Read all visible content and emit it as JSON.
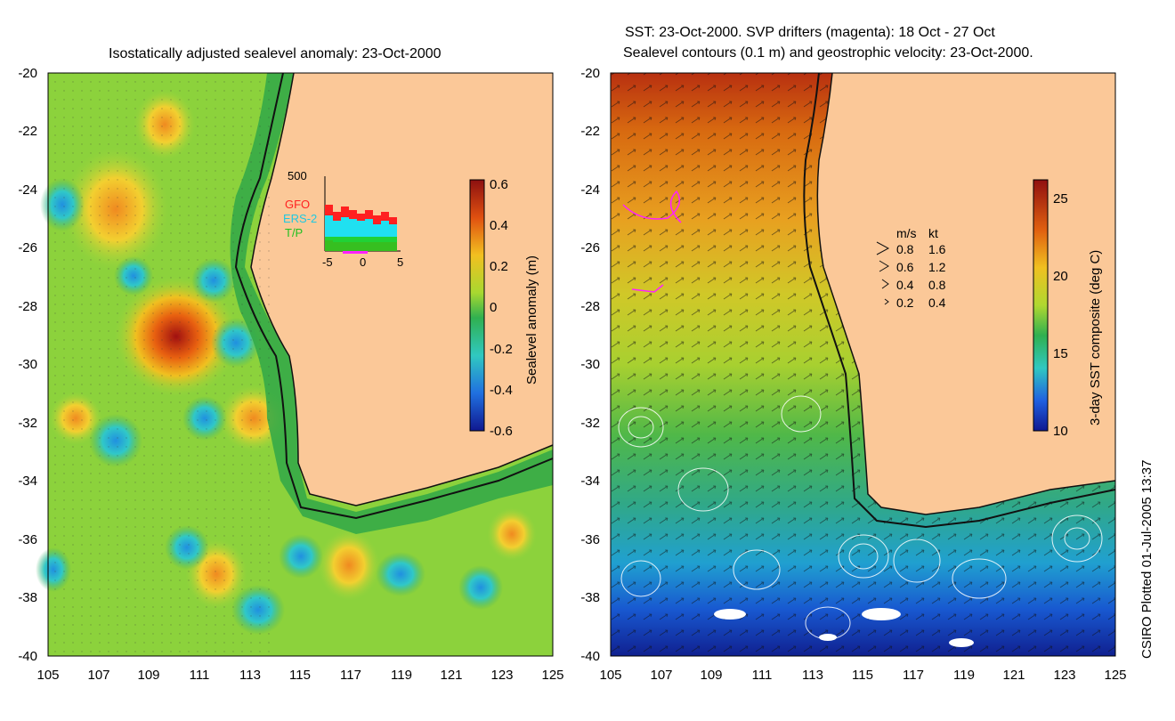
{
  "left_map": {
    "title": "Isostatically adjusted sealevel anomaly: 23-Oct-2000",
    "colorbar_label": "Sealevel anomaly (m)",
    "colorbar_ticks": [
      "0.6",
      "0.4",
      "0.2",
      "0",
      "-0.2",
      "-0.4",
      "-0.6"
    ],
    "inset": {
      "ymax_label": "500",
      "legend": [
        {
          "name": "GFO",
          "color": "#ff2020"
        },
        {
          "name": "ERS-2",
          "color": "#20e0f0"
        },
        {
          "name": "T/P",
          "color": "#20d020"
        }
      ],
      "x_ticks": [
        "-5",
        "0",
        "5"
      ]
    }
  },
  "right_map": {
    "title_line1": "SST: 23-Oct-2000. SVP drifters (magenta): 18 Oct - 27 Oct",
    "title_line2": "Sealevel contours (0.1 m) and geostrophic velocity: 23-Oct-2000.",
    "colorbar_label": "3-day SST composite (deg C)",
    "colorbar_ticks": [
      "25",
      "20",
      "15",
      "10"
    ],
    "velocity_legend": {
      "header_ms": "m/s",
      "header_kt": "kt",
      "rows": [
        {
          "ms": "0.8",
          "kt": "1.6"
        },
        {
          "ms": "0.6",
          "kt": "1.2"
        },
        {
          "ms": "0.4",
          "kt": "0.8"
        },
        {
          "ms": "0.2",
          "kt": "0.4"
        }
      ]
    }
  },
  "axes": {
    "y_ticks": [
      "-20",
      "-22",
      "-24",
      "-26",
      "-28",
      "-30",
      "-32",
      "-34",
      "-36",
      "-38",
      "-40"
    ],
    "x_ticks": [
      "105",
      "107",
      "109",
      "111",
      "113",
      "115",
      "117",
      "119",
      "121",
      "123",
      "125"
    ]
  },
  "footer": {
    "credit": "CSIRO Plotted 01-Jul-2005 13:37"
  },
  "colors": {
    "land": "#fbc898",
    "sla_neutral": "#48c848",
    "sst_warm": "#d86a10",
    "sst_cool": "#1040c0"
  }
}
